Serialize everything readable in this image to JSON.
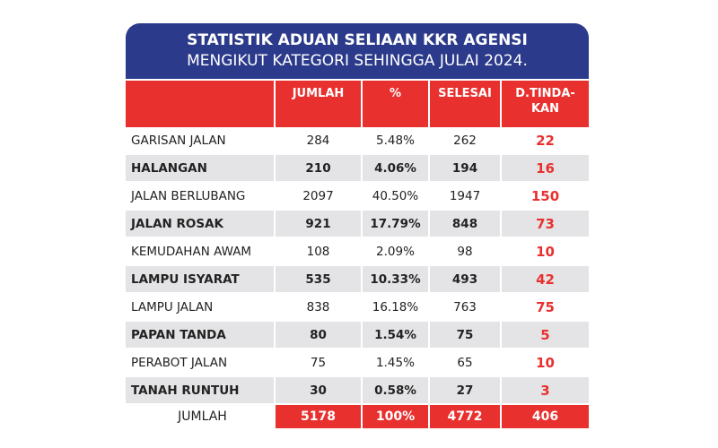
{
  "header": {
    "title": "STATISTIK ADUAN SELIAAN KKR AGENSI",
    "subtitle": "MENGIKUT KATEGORI SEHINGGA JULAI 2024."
  },
  "table": {
    "columns": [
      "JUMLAH",
      "%",
      "SELESAI",
      [
        "D.TINDA-",
        "KAN"
      ]
    ],
    "rows": [
      [
        "GARISAN JALAN",
        "284",
        "5.48%",
        "262",
        "22"
      ],
      [
        "HALANGAN",
        "210",
        "4.06%",
        "194",
        "16"
      ],
      [
        "JALAN BERLUBANG",
        "2097",
        "40.50%",
        "1947",
        "150"
      ],
      [
        "JALAN ROSAK",
        "921",
        "17.79%",
        "848",
        "73"
      ],
      [
        "KEMUDAHAN AWAM",
        "108",
        "2.09%",
        "98",
        "10"
      ],
      [
        "LAMPU ISYARAT",
        "535",
        "10.33%",
        "493",
        "42"
      ],
      [
        "LAMPU JALAN",
        "838",
        "16.18%",
        "763",
        "75"
      ],
      [
        "PAPAN TANDA",
        "80",
        "1.54%",
        "75",
        "5"
      ],
      [
        "PERABOT JALAN",
        "75",
        "1.45%",
        "65",
        "10"
      ],
      [
        "TANAH RUNTUH",
        "30",
        "0.58%",
        "27",
        "3"
      ]
    ],
    "total": [
      "JUMLAH",
      "5178",
      "100%",
      "4772",
      "406"
    ]
  }
}
